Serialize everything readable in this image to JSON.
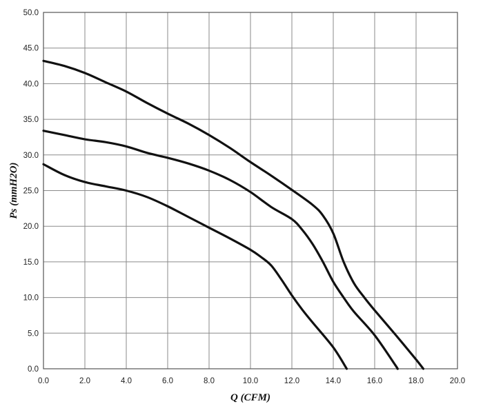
{
  "chart_data": {
    "type": "line",
    "xlabel": "Q (CFM)",
    "ylabel": "Ps (mmH2O)",
    "xlim": [
      0,
      20
    ],
    "ylim": [
      0,
      50
    ],
    "grid": true,
    "x_ticks": [
      "0.0",
      "2.0",
      "4.0",
      "6.0",
      "8.0",
      "10.0",
      "12.0",
      "14.0",
      "16.0",
      "18.0",
      "20.0"
    ],
    "y_ticks": [
      "0.0",
      "5.0",
      "10.0",
      "15.0",
      "20.0",
      "25.0",
      "30.0",
      "35.0",
      "40.0",
      "45.0",
      "50.0"
    ],
    "series": [
      {
        "points": [
          [
            0,
            43.2
          ],
          [
            1,
            42.5
          ],
          [
            2,
            41.5
          ],
          [
            3,
            40.2
          ],
          [
            4,
            38.9
          ],
          [
            5,
            37.3
          ],
          [
            6,
            35.8
          ],
          [
            7,
            34.4
          ],
          [
            8,
            32.8
          ],
          [
            9,
            31.0
          ],
          [
            10,
            29.0
          ],
          [
            11,
            27.1
          ],
          [
            12,
            25.1
          ],
          [
            13,
            23.0
          ],
          [
            13.5,
            21.5
          ],
          [
            14,
            19.0
          ],
          [
            14.5,
            15.0
          ],
          [
            15,
            12.0
          ],
          [
            15.5,
            10.0
          ],
          [
            16,
            8.2
          ],
          [
            17,
            4.8
          ],
          [
            18,
            1.3
          ],
          [
            18.35,
            0
          ]
        ]
      },
      {
        "points": [
          [
            0,
            33.4
          ],
          [
            1,
            32.8
          ],
          [
            2,
            32.2
          ],
          [
            3,
            31.8
          ],
          [
            4,
            31.2
          ],
          [
            5,
            30.3
          ],
          [
            6,
            29.6
          ],
          [
            7,
            28.8
          ],
          [
            8,
            27.8
          ],
          [
            9,
            26.5
          ],
          [
            10,
            24.8
          ],
          [
            11,
            22.7
          ],
          [
            12,
            21.0
          ],
          [
            12.5,
            19.5
          ],
          [
            13,
            17.5
          ],
          [
            13.5,
            15.0
          ],
          [
            14,
            12.2
          ],
          [
            14.5,
            10.0
          ],
          [
            15,
            8.0
          ],
          [
            16,
            4.7
          ],
          [
            17,
            0.5
          ],
          [
            17.1,
            0
          ]
        ]
      },
      {
        "points": [
          [
            0,
            28.7
          ],
          [
            1,
            27.2
          ],
          [
            2,
            26.2
          ],
          [
            3,
            25.6
          ],
          [
            4,
            25.0
          ],
          [
            5,
            24.1
          ],
          [
            6,
            22.8
          ],
          [
            7,
            21.3
          ],
          [
            8,
            19.8
          ],
          [
            9,
            18.3
          ],
          [
            10,
            16.7
          ],
          [
            10.5,
            15.7
          ],
          [
            11,
            14.5
          ],
          [
            11.5,
            12.5
          ],
          [
            12,
            10.3
          ],
          [
            12.5,
            8.3
          ],
          [
            13,
            6.5
          ],
          [
            14,
            3.0
          ],
          [
            14.65,
            0
          ]
        ]
      }
    ]
  }
}
